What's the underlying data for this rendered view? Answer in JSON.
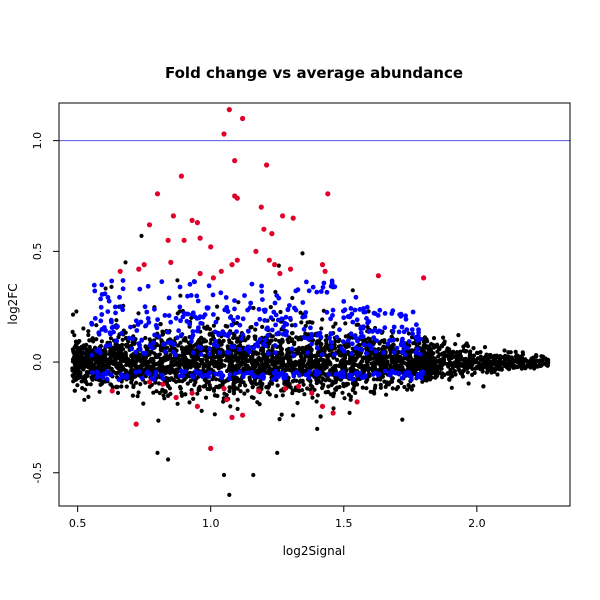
{
  "chart_data": {
    "type": "scatter",
    "title": "Fold change vs average abundance",
    "xlabel": "log2Signal",
    "ylabel": "log2FC",
    "xlim": [
      0.43,
      2.35
    ],
    "ylim": [
      -0.65,
      1.17
    ],
    "x_ticks": [
      0.5,
      1.0,
      1.5,
      2.0
    ],
    "x_tick_labels": [
      "0.5",
      "1.0",
      "1.5",
      "2.0"
    ],
    "y_ticks": [
      -0.5,
      0.0,
      0.5,
      1.0
    ],
    "y_tick_labels": [
      "-0.5",
      "0.0",
      "0.5",
      "1.0"
    ],
    "reference_line": {
      "y": 1.0,
      "color": "#5555dd"
    },
    "grid": false,
    "legend": "none",
    "colors": {
      "background_points": "#000000",
      "blue_points": "#0000ff",
      "red_points": "#e0002a"
    },
    "series": [
      {
        "color": "#e0002a",
        "points": [
          [
            1.07,
            1.14
          ],
          [
            1.12,
            1.1
          ],
          [
            1.05,
            1.03
          ],
          [
            1.09,
            0.91
          ],
          [
            1.21,
            0.89
          ],
          [
            0.89,
            0.84
          ],
          [
            1.44,
            0.76
          ],
          [
            0.8,
            0.76
          ],
          [
            1.09,
            0.75
          ],
          [
            1.19,
            0.7
          ],
          [
            1.1,
            0.74
          ],
          [
            0.86,
            0.66
          ],
          [
            1.27,
            0.66
          ],
          [
            1.31,
            0.65
          ],
          [
            0.93,
            0.64
          ],
          [
            0.95,
            0.63
          ],
          [
            0.77,
            0.62
          ],
          [
            1.2,
            0.6
          ],
          [
            1.23,
            0.58
          ],
          [
            0.96,
            0.56
          ],
          [
            0.9,
            0.55
          ],
          [
            0.84,
            0.55
          ],
          [
            1.0,
            0.52
          ],
          [
            1.17,
            0.5
          ],
          [
            1.22,
            0.46
          ],
          [
            1.24,
            0.44
          ],
          [
            0.75,
            0.44
          ],
          [
            1.42,
            0.44
          ],
          [
            1.1,
            0.46
          ],
          [
            0.85,
            0.45
          ],
          [
            1.3,
            0.42
          ],
          [
            1.43,
            0.41
          ],
          [
            1.8,
            0.38
          ],
          [
            1.04,
            0.41
          ],
          [
            1.63,
            0.39
          ],
          [
            0.73,
            0.42
          ],
          [
            0.96,
            0.4
          ],
          [
            1.26,
            0.4
          ],
          [
            1.01,
            0.38
          ],
          [
            1.08,
            0.44
          ],
          [
            0.66,
            0.41
          ],
          [
            0.93,
            -0.14
          ],
          [
            0.82,
            -0.1
          ],
          [
            1.0,
            -0.39
          ],
          [
            0.72,
            -0.28
          ],
          [
            1.06,
            -0.17
          ],
          [
            1.46,
            -0.23
          ],
          [
            1.12,
            -0.24
          ],
          [
            1.28,
            -0.12
          ],
          [
            0.87,
            -0.16
          ],
          [
            0.77,
            -0.09
          ],
          [
            1.05,
            -0.12
          ],
          [
            1.33,
            -0.11
          ],
          [
            0.95,
            -0.2
          ],
          [
            1.38,
            -0.14
          ],
          [
            1.18,
            -0.13
          ],
          [
            1.55,
            -0.18
          ],
          [
            0.63,
            -0.13
          ],
          [
            1.42,
            -0.2
          ],
          [
            1.08,
            -0.25
          ]
        ]
      }
    ]
  }
}
